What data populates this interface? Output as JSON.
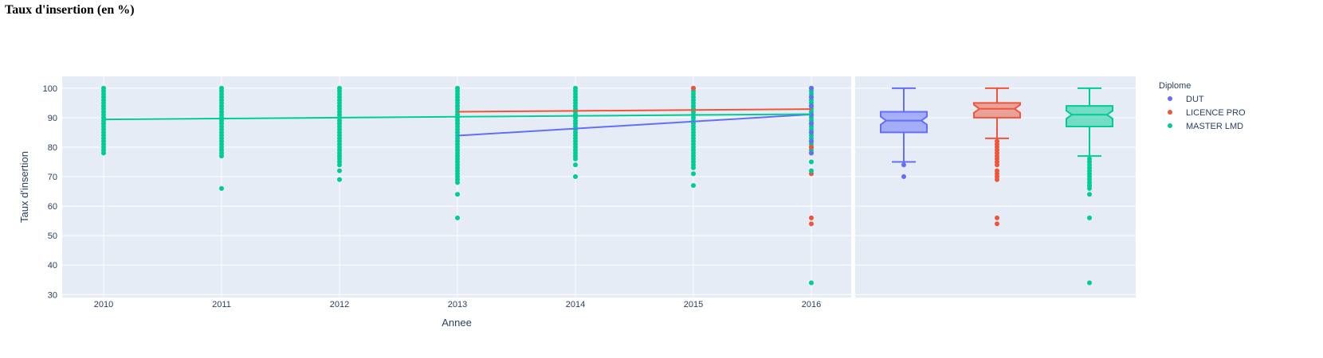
{
  "page": {
    "title": "Taux d'insertion (en %)"
  },
  "colors": {
    "plot_bg": "#e5ecf6",
    "grid": "#ffffff",
    "axis_text": "#2a3f5f",
    "DUT": "#636efa",
    "LICENCE PRO": "#ef553b",
    "MASTER LMD": "#00cc96"
  },
  "chart_data": [
    {
      "type": "scatter",
      "subtype": "strip + trend lines",
      "title": "",
      "xlabel": "Annee",
      "ylabel": "Taux d'insertion",
      "x_ticks": [
        "2010",
        "2011",
        "2012",
        "2013",
        "2014",
        "2015",
        "2016"
      ],
      "ylim": [
        29,
        104
      ],
      "y_ticks": [
        30,
        40,
        50,
        60,
        70,
        80,
        90,
        100
      ],
      "grid": true,
      "series": [
        {
          "name": "DUT",
          "trend": [
            [
              2013,
              83.9
            ],
            [
              2014,
              86.3
            ],
            [
              2015,
              88.7
            ],
            [
              2016,
              91.1
            ]
          ],
          "points": [
            [
              2016,
              78
            ],
            [
              2016,
              80
            ],
            [
              2016,
              82
            ],
            [
              2016,
              85
            ],
            [
              2016,
              88
            ],
            [
              2016,
              91
            ],
            [
              2016,
              94
            ],
            [
              2016,
              97
            ],
            [
              2016,
              100
            ]
          ]
        },
        {
          "name": "LICENCE PRO",
          "trend": [
            [
              2013,
              92.0
            ],
            [
              2014,
              92.3
            ],
            [
              2015,
              92.6
            ],
            [
              2016,
              92.9
            ]
          ],
          "points": [
            [
              2015,
              100
            ],
            [
              2016,
              80
            ],
            [
              2016,
              71
            ],
            [
              2016,
              56
            ],
            [
              2016,
              54
            ]
          ]
        },
        {
          "name": "MASTER LMD",
          "trend": [
            [
              2010,
              89.4
            ],
            [
              2011,
              89.7
            ],
            [
              2012,
              90.0
            ],
            [
              2013,
              90.3
            ],
            [
              2014,
              90.6
            ],
            [
              2015,
              90.9
            ],
            [
              2016,
              91.2
            ]
          ],
          "dense_bands": [
            {
              "x": 2010,
              "from": 80,
              "to": 100
            },
            {
              "x": 2011,
              "from": 77,
              "to": 100
            },
            {
              "x": 2012,
              "from": 74,
              "to": 100
            },
            {
              "x": 2013,
              "from": 68,
              "to": 100
            },
            {
              "x": 2014,
              "from": 76,
              "to": 100
            },
            {
              "x": 2015,
              "from": 74,
              "to": 100
            },
            {
              "x": 2016,
              "from": 78,
              "to": 100
            }
          ],
          "points": [
            [
              2010,
              79
            ],
            [
              2010,
              78
            ],
            [
              2011,
              66
            ],
            [
              2012,
              72
            ],
            [
              2012,
              69
            ],
            [
              2013,
              64
            ],
            [
              2013,
              56
            ],
            [
              2014,
              74
            ],
            [
              2014,
              70
            ],
            [
              2015,
              73
            ],
            [
              2015,
              71
            ],
            [
              2015,
              67
            ],
            [
              2016,
              75
            ],
            [
              2016,
              72
            ],
            [
              2016,
              34
            ]
          ]
        }
      ]
    },
    {
      "type": "box",
      "title": "",
      "ylim": [
        29,
        104
      ],
      "notched": true,
      "grid": true,
      "boxes": [
        {
          "name": "DUT",
          "min": 75,
          "q1": 85,
          "median": 89,
          "q3": 92,
          "max": 100,
          "outliers": [
            74,
            70
          ]
        },
        {
          "name": "LICENCE PRO",
          "min": 83,
          "q1": 90,
          "median": 93,
          "q3": 95,
          "max": 100,
          "outliers": [
            82,
            81,
            80,
            79,
            78,
            77,
            76,
            75,
            74,
            72,
            71,
            70,
            69,
            56,
            54
          ]
        },
        {
          "name": "MASTER LMD",
          "min": 77,
          "q1": 87,
          "median": 91,
          "q3": 94,
          "max": 100,
          "outliers": [
            76,
            75,
            74,
            73,
            72,
            71,
            70,
            69,
            68,
            67,
            66,
            64,
            56,
            34
          ]
        }
      ]
    }
  ],
  "legend": {
    "title": "Diplome",
    "placement": "right",
    "items": [
      "DUT",
      "LICENCE PRO",
      "MASTER LMD"
    ]
  }
}
